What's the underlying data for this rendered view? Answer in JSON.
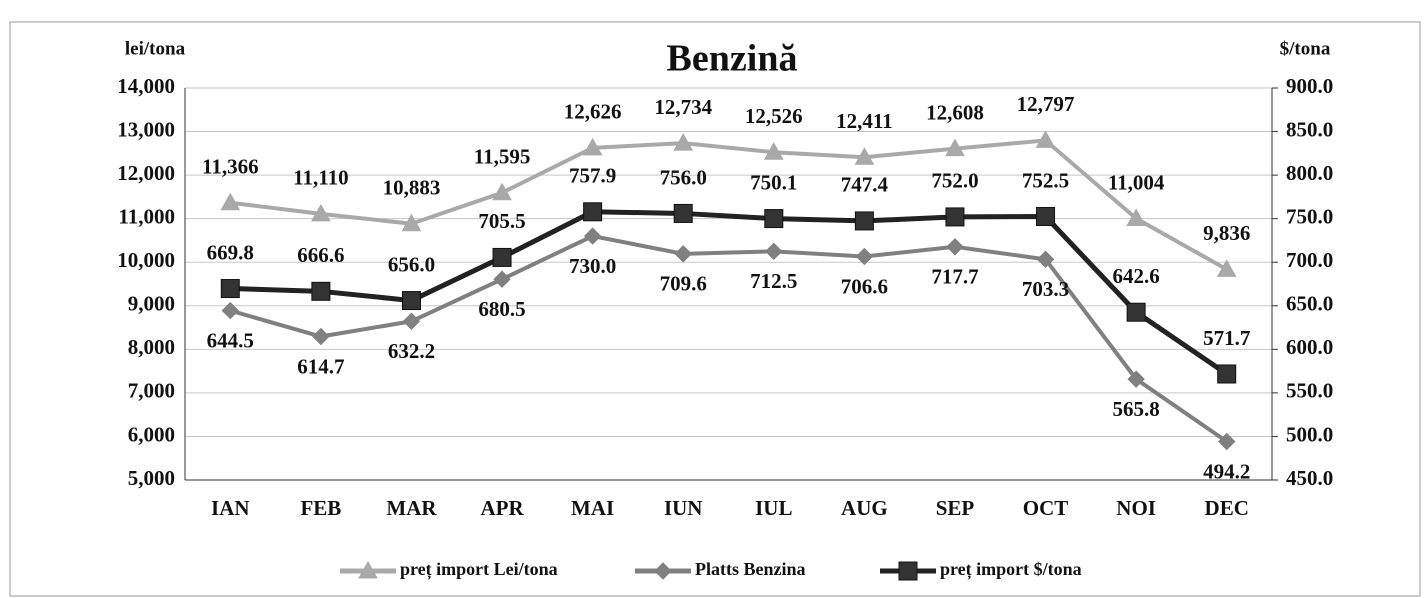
{
  "chart_data": {
    "type": "line",
    "title": "Benzină",
    "ylabel": "lei/tona",
    "y2label": "$/tona",
    "categories": [
      "IAN",
      "FEB",
      "MAR",
      "APR",
      "MAI",
      "IUN",
      "IUL",
      "AUG",
      "SEP",
      "OCT",
      "NOI",
      "DEC"
    ],
    "series": [
      {
        "name": "preț import Lei/tona",
        "color": "#a9a9a9",
        "marker": "triangle",
        "values": [
          11366,
          11110,
          10883,
          11595,
          12626,
          12734,
          12526,
          12411,
          12608,
          12797,
          11004,
          9836
        ],
        "value_labels": [
          "11,366",
          "11,110",
          "10,883",
          "11,595",
          "12,626",
          "12,734",
          "12,526",
          "12,411",
          "12,608",
          "12,797",
          "11,004",
          "9,836"
        ]
      },
      {
        "name": "Platts Benzina",
        "color": "#808080",
        "marker": "diamond",
        "axis": "y2",
        "values": [
          644.5,
          614.7,
          632.2,
          680.5,
          730.0,
          709.6,
          712.5,
          706.6,
          717.7,
          703.3,
          565.8,
          494.2
        ],
        "value_labels": [
          "644.5",
          "614.7",
          "632.2",
          "680.5",
          "730.0",
          "709.6",
          "712.5",
          "706.6",
          "717.7",
          "703.3",
          "565.8",
          "494.2"
        ]
      },
      {
        "name": "preț import $/tona",
        "color": "#222222",
        "marker": "square",
        "axis": "y2",
        "values": [
          669.8,
          666.6,
          656.0,
          705.5,
          757.9,
          756.0,
          750.1,
          747.4,
          752.0,
          752.5,
          642.6,
          571.7
        ],
        "value_labels": [
          "669.8",
          "666.6",
          "656.0",
          "705.5",
          "757.9",
          "756.0",
          "750.1",
          "747.4",
          "752.0",
          "752.5",
          "642.6",
          "571.7"
        ]
      }
    ],
    "ylim": [
      5000,
      14000
    ],
    "yticks": [
      {
        "value": 5000,
        "label": "5,000"
      },
      {
        "value": 6000,
        "label": "6,000"
      },
      {
        "value": 7000,
        "label": "7,000"
      },
      {
        "value": 8000,
        "label": "8,000"
      },
      {
        "value": 9000,
        "label": "9,000"
      },
      {
        "value": 10000,
        "label": "10,000"
      },
      {
        "value": 11000,
        "label": "11,000"
      },
      {
        "value": 12000,
        "label": "12,000"
      },
      {
        "value": 13000,
        "label": "13,000"
      },
      {
        "value": 14000,
        "label": "14,000"
      }
    ],
    "y2lim": [
      450,
      900
    ],
    "y2ticks": [
      {
        "value": 450,
        "label": "450.0"
      },
      {
        "value": 500,
        "label": "500.0"
      },
      {
        "value": 550,
        "label": "550.0"
      },
      {
        "value": 600,
        "label": "600.0"
      },
      {
        "value": 650,
        "label": "650.0"
      },
      {
        "value": 700,
        "label": "700.0"
      },
      {
        "value": 750,
        "label": "750.0"
      },
      {
        "value": 800,
        "label": "800.0"
      },
      {
        "value": 850,
        "label": "850.0"
      },
      {
        "value": 900,
        "label": "900.0"
      }
    ],
    "grid": true,
    "legend": "bottom"
  }
}
